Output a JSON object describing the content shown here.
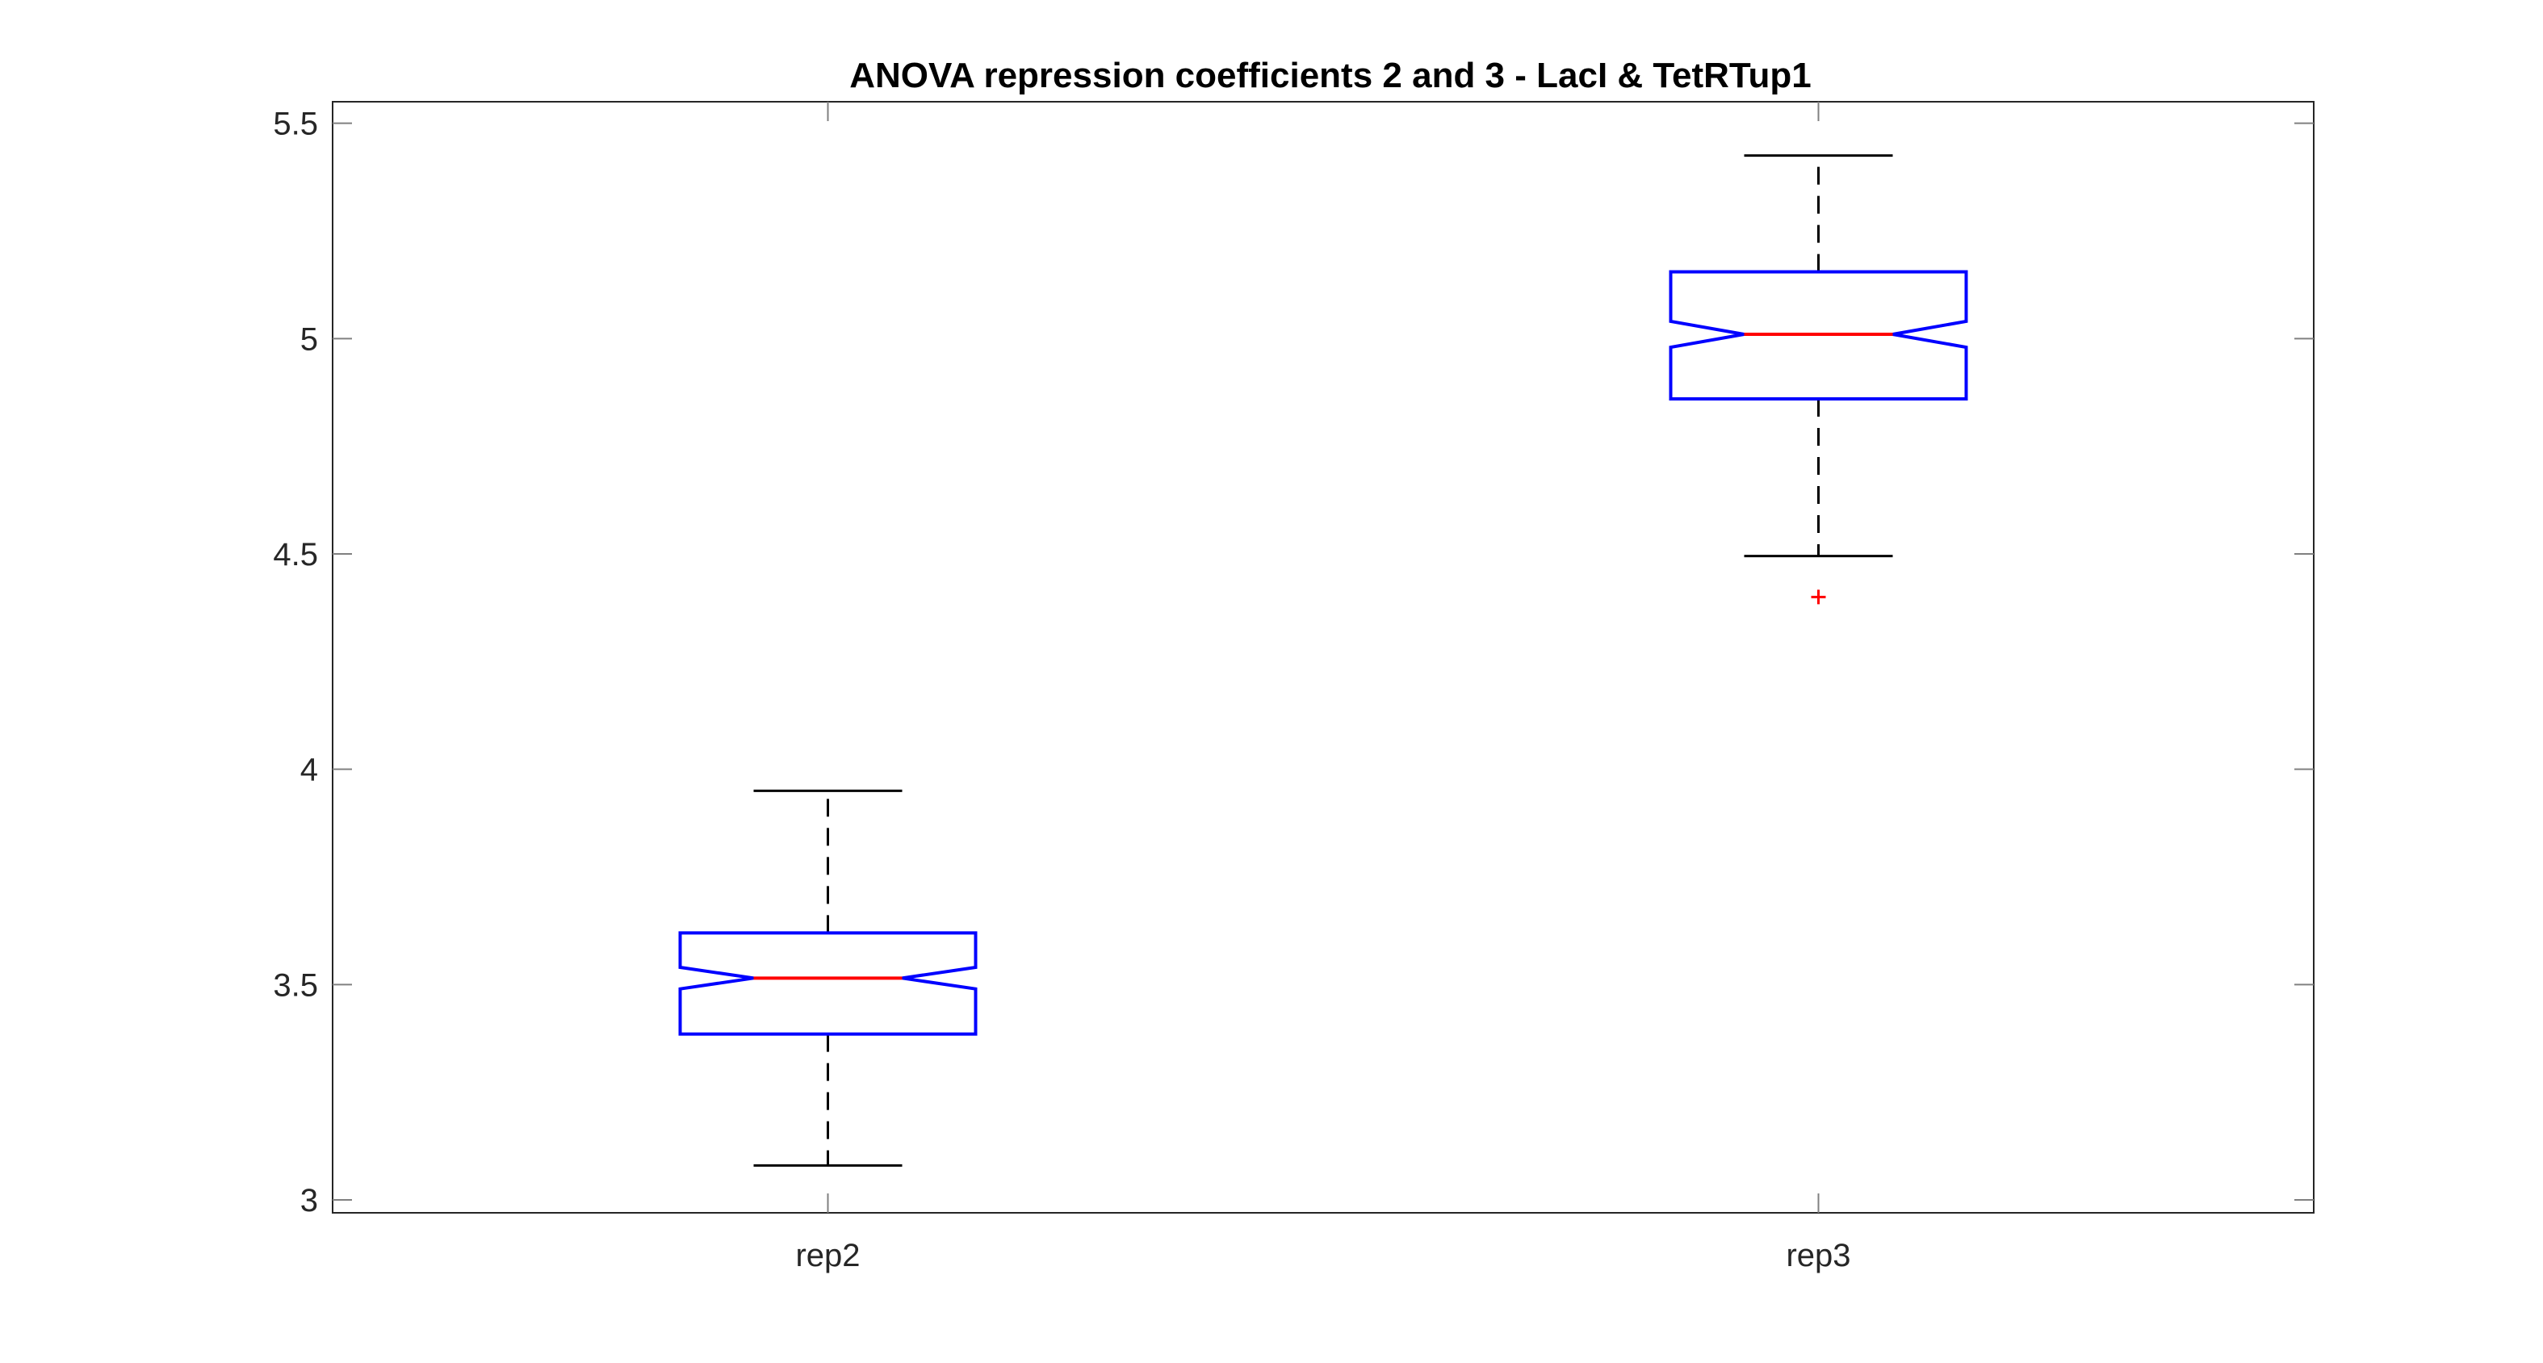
{
  "chart_data": {
    "type": "boxplot",
    "title": "ANOVA repression coefficients 2 and 3 - LacI & TetRTup1",
    "xlabel": "",
    "ylabel": "",
    "categories": [
      "rep2",
      "rep3"
    ],
    "ylim": [
      2.97,
      5.55
    ],
    "yticks": [
      3,
      3.5,
      4,
      4.5,
      5,
      5.5
    ],
    "ytick_labels": [
      "3",
      "3.5",
      "4",
      "4.5",
      "5",
      "5.5"
    ],
    "notched": true,
    "grid": false,
    "series": [
      {
        "category": "rep2",
        "whisker_low": 3.08,
        "q1": 3.385,
        "median": 3.515,
        "q3": 3.62,
        "whisker_high": 3.95,
        "notch_low": 3.49,
        "notch_high": 3.54,
        "outliers": []
      },
      {
        "category": "rep3",
        "whisker_low": 4.495,
        "q1": 4.86,
        "median": 5.01,
        "q3": 5.155,
        "whisker_high": 5.425,
        "notch_low": 4.98,
        "notch_high": 5.04,
        "outliers": [
          4.4
        ]
      }
    ],
    "colors": {
      "box": "#0000ff",
      "median": "#ff0000",
      "whisker": "#000000",
      "outlier": "#ff0000",
      "axes": "#262626",
      "tick": "#808080"
    }
  }
}
